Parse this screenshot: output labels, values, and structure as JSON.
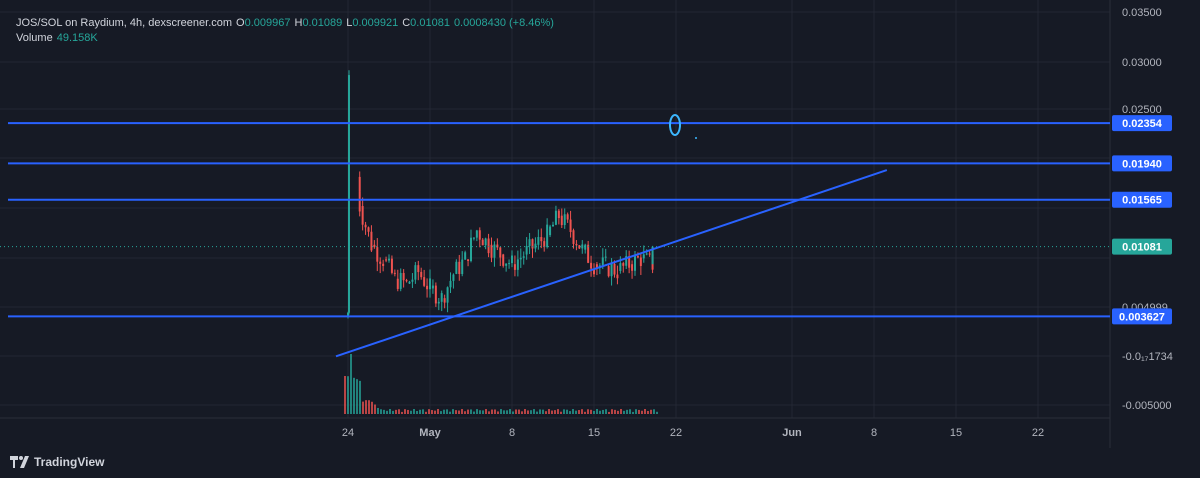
{
  "header": {
    "symbol_line": "JOS/SOL on Raydium, 4h, dexscreener.com",
    "ohlc": [
      {
        "key": "O",
        "value": "0.009967"
      },
      {
        "key": "H",
        "value": "0.01089"
      },
      {
        "key": "L",
        "value": "0.009921"
      },
      {
        "key": "C",
        "value": "0.01081"
      }
    ],
    "change": "0.0008430 (+8.46%)",
    "volume_label": "Volume",
    "volume_value": "49.158K"
  },
  "brand": {
    "name": "TradingView",
    "icon": "tradingview-logo-icon"
  },
  "colors": {
    "background": "#161a25",
    "up": "#26a69a",
    "down": "#ef5350",
    "line": "#2962ff",
    "grid": "#232733",
    "text": "#d1d4dc",
    "ellipse": "#3cb7ff"
  },
  "chart_data": {
    "type": "candlestick",
    "symbol": "JOS/SOL",
    "interval": "4h",
    "yticks": [
      "0.03500",
      "0.03000",
      "0.02500",
      "0.004999",
      "-0.0₁₇1734",
      "-0.005000"
    ],
    "xticks": [
      "24",
      "May",
      "8",
      "15",
      "22",
      "Jun",
      "8",
      "15",
      "22"
    ],
    "last_price": "0.01081",
    "horizontal_levels": [
      "0.02354",
      "0.01940",
      "0.01565",
      "0.003627"
    ],
    "trendline": {
      "start": {
        "date": "Apr 24",
        "value": -0.0005
      },
      "end": {
        "date": "Jun 9",
        "value": 0.0187
      }
    },
    "price_path": [
      [
        "Apr 24",
        0.0036,
        0.004
      ],
      [
        "Apr 24",
        0.004,
        0.029
      ],
      [
        "Apr 25",
        0.018,
        0.015
      ],
      [
        "Apr 25",
        0.015,
        0.011
      ],
      [
        "Apr 26",
        0.011,
        0.0095
      ],
      [
        "Apr 27",
        0.0095,
        0.0075
      ],
      [
        "Apr 28",
        0.0075,
        0.007
      ],
      [
        "Apr 29",
        0.007,
        0.0082
      ],
      [
        "Apr 30",
        0.0082,
        0.0065
      ],
      [
        "May 1",
        0.0065,
        0.0055
      ],
      [
        "May 2",
        0.0055,
        0.008
      ],
      [
        "May 3",
        0.008,
        0.0095
      ],
      [
        "May 4",
        0.0095,
        0.0125
      ],
      [
        "May 5",
        0.0125,
        0.011
      ],
      [
        "May 6",
        0.011,
        0.01
      ],
      [
        "May 7",
        0.01,
        0.009
      ],
      [
        "May 8",
        0.009,
        0.01
      ],
      [
        "May 9",
        0.01,
        0.011
      ],
      [
        "May 10",
        0.011,
        0.012
      ],
      [
        "May 11",
        0.012,
        0.014
      ],
      [
        "May 12",
        0.014,
        0.0125
      ],
      [
        "May 13",
        0.0125,
        0.0105
      ],
      [
        "May 14",
        0.0105,
        0.009
      ],
      [
        "May 15",
        0.009,
        0.0088
      ],
      [
        "May 16",
        0.0088,
        0.0083
      ],
      [
        "May 17",
        0.0083,
        0.009
      ],
      [
        "May 18",
        0.009,
        0.0096
      ],
      [
        "May 19",
        0.0096,
        0.009
      ],
      [
        "May 20",
        0.009,
        0.0108
      ]
    ]
  }
}
